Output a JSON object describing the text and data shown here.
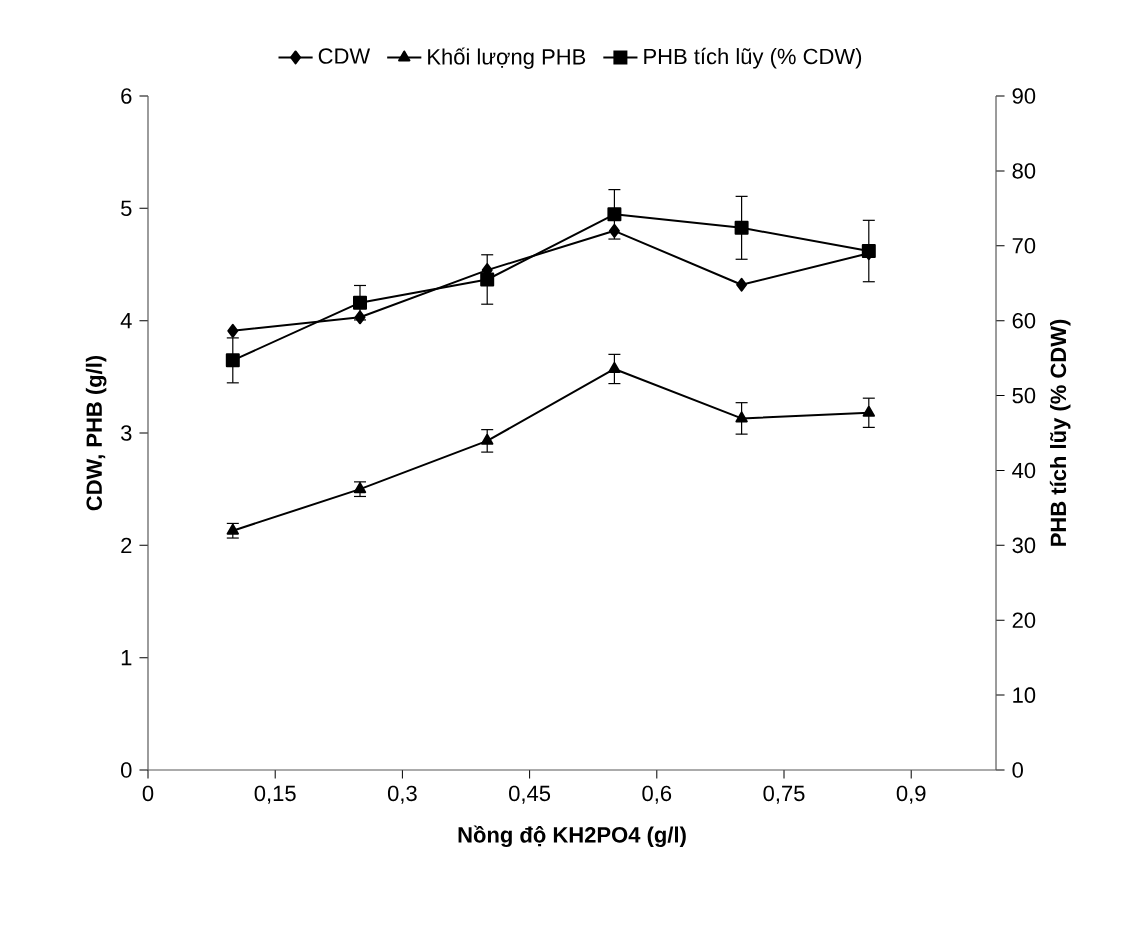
{
  "chart_data": {
    "type": "line",
    "xlabel": "Nồng độ KH2PO4 (g/l)",
    "ylabel": "CDW, PHB (g/l)",
    "y2label": "PHB tích lũy (% CDW)",
    "x": [
      0.1,
      0.25,
      0.4,
      0.55,
      0.7,
      0.85
    ],
    "series": [
      {
        "name": "CDW",
        "color": "#000000",
        "marker": "diamond",
        "values": [
          3.91,
          4.03,
          4.45,
          4.8,
          4.32,
          4.6
        ]
      },
      {
        "name": "Khối lượng PHB",
        "color": "#000000",
        "marker": "triangle",
        "values": [
          2.13,
          2.5,
          2.93,
          3.57,
          3.13,
          3.18
        ],
        "errors": [
          0.065,
          0.065,
          0.1,
          0.13,
          0.14,
          0.13
        ]
      },
      {
        "name": "PHB tích lũy (% CDW)",
        "color": "#000000",
        "marker": "square",
        "axis": "y2",
        "values": [
          54.7,
          62.4,
          65.5,
          74.2,
          72.4,
          69.3
        ],
        "errors": [
          3,
          2.3,
          3.3,
          3.3,
          4.2,
          4.1
        ]
      }
    ],
    "xlim": [
      0,
      1.0
    ],
    "xticks": [
      {
        "value": 0,
        "label": "0"
      },
      {
        "value": 0.15,
        "label": "0,15"
      },
      {
        "value": 0.3,
        "label": "0,3"
      },
      {
        "value": 0.45,
        "label": "0,45"
      },
      {
        "value": 0.6,
        "label": "0,6"
      },
      {
        "value": 0.75,
        "label": "0,75"
      },
      {
        "value": 0.9,
        "label": "0,9"
      }
    ],
    "ylim": [
      0,
      6
    ],
    "yticks": [
      0,
      1,
      2,
      3,
      4,
      5,
      6
    ],
    "y2lim": [
      0,
      90
    ],
    "y2ticks": [
      0,
      10,
      20,
      30,
      40,
      50,
      60,
      70,
      80,
      90
    ],
    "grid": false,
    "legend": "top",
    "line_style": "solid"
  }
}
